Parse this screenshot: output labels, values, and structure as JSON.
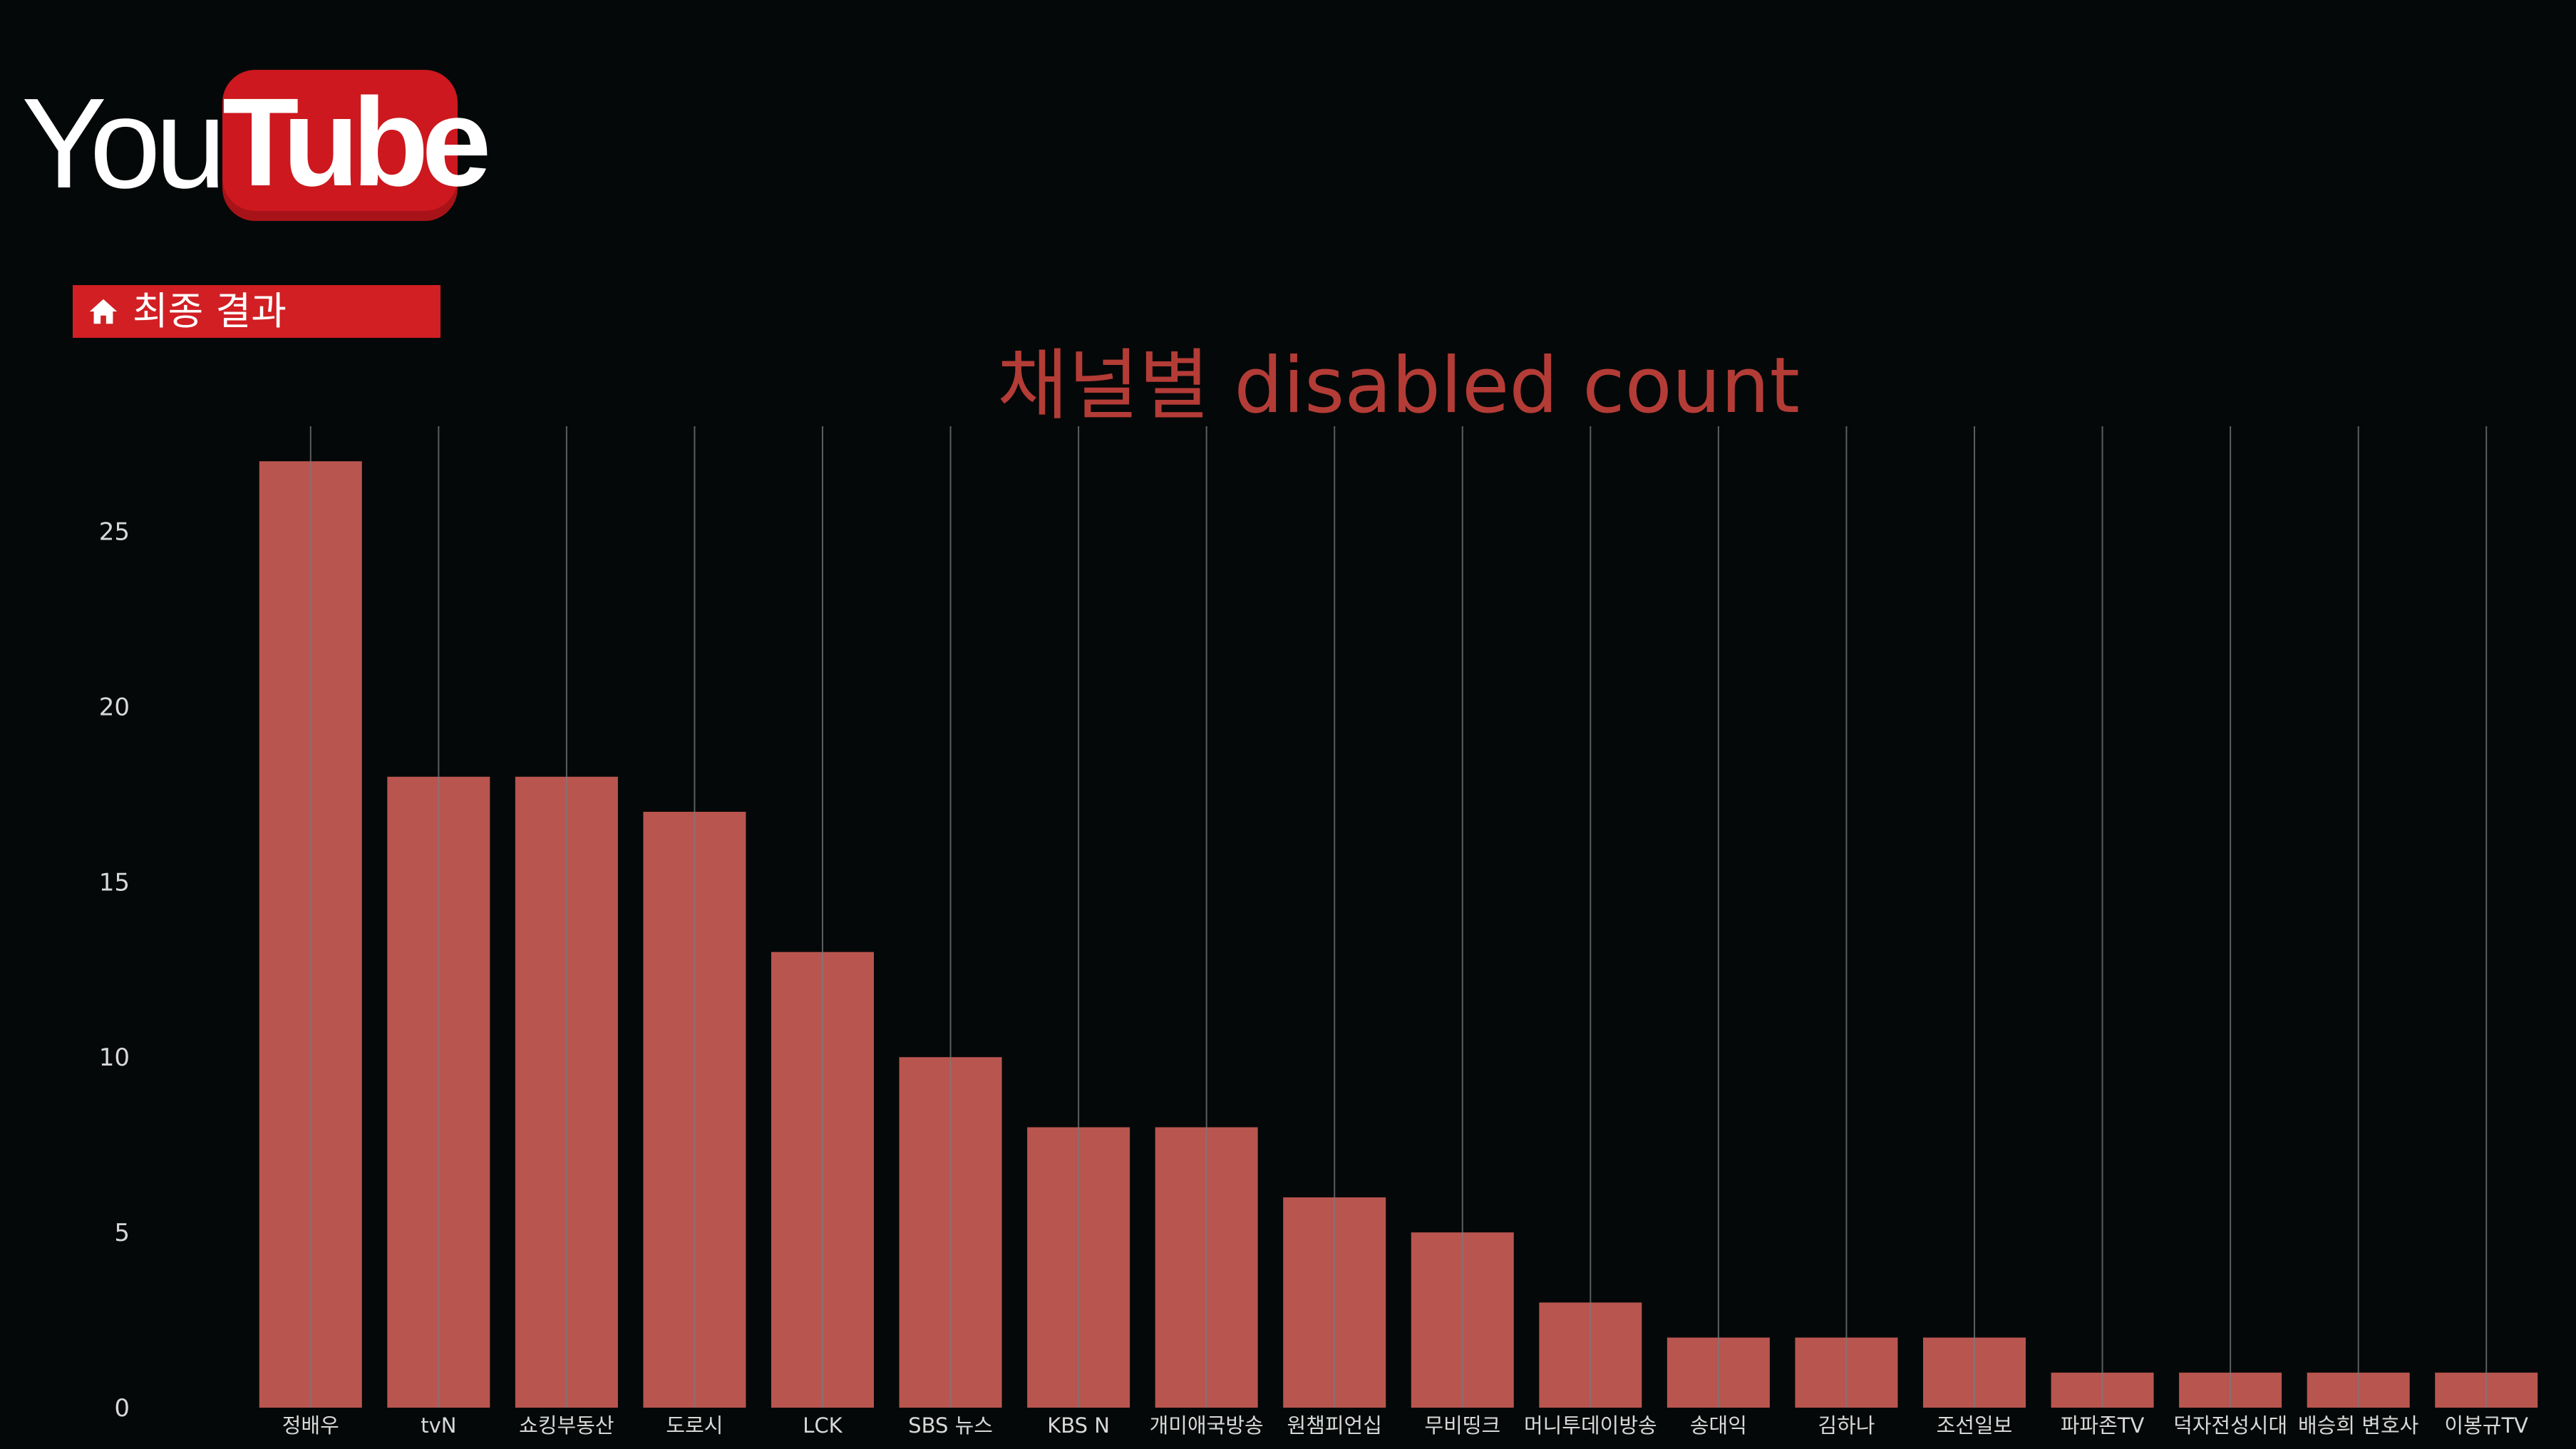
{
  "logo": {
    "text_you": "You",
    "text_tube": "Tube"
  },
  "nav": {
    "home_label": "최종 결과",
    "icon": "home-icon"
  },
  "colors": {
    "background": "#050808",
    "bar": "#b9554f",
    "title": "#b43c37",
    "tick_text": "#d8d8d8",
    "grid": "#7a7a7a",
    "brand_red": "#d11f24"
  },
  "chart_data": {
    "type": "bar",
    "title": "채널별 disabled count",
    "xlabel": "",
    "ylabel": "",
    "categories": [
      "정배우",
      "tvN",
      "쇼킹부동산",
      "도로시",
      "LCK",
      "SBS 뉴스",
      "KBS N",
      "개미애국방송",
      "원챔피언십",
      "무비띵크",
      "머니투데이방송",
      "송대익",
      "김하나",
      "조선일보",
      "파파존TV",
      "덕자전성시대",
      "배승희 변호사",
      "이봉규TV"
    ],
    "values": [
      27,
      18,
      18,
      17,
      13,
      10,
      8,
      8,
      6,
      5,
      3,
      2,
      2,
      2,
      1,
      1,
      1,
      1
    ],
    "yticks": [
      0,
      5,
      10,
      15,
      20,
      25
    ],
    "ylim": [
      0,
      28
    ],
    "grid": "vertical",
    "legend": "none"
  }
}
